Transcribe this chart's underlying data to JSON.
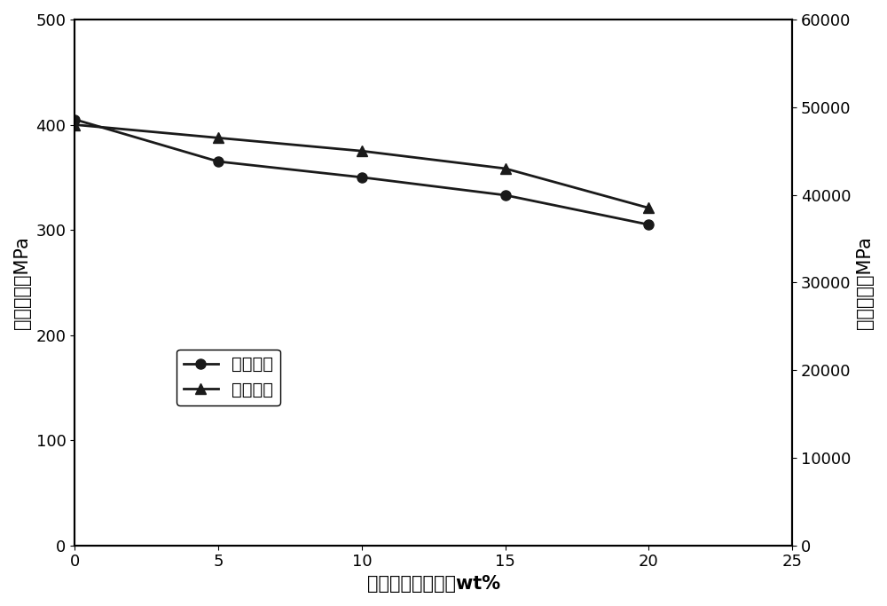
{
  "x": [
    0,
    5,
    10,
    15,
    20
  ],
  "hardness": [
    405,
    365,
    350,
    333,
    305
  ],
  "youngs_modulus": [
    48000,
    46500,
    45000,
    43000,
    38500
  ],
  "xlabel": "胶凝酸酸液浓度，wt%",
  "ylabel_left": "表面硬度，MPa",
  "ylabel_right": "杨氏模量，MPa",
  "legend_hardness": "表面硬度",
  "legend_youngs": "杨氏模量",
  "xlim": [
    0,
    25
  ],
  "ylim_left": [
    0,
    500
  ],
  "ylim_right": [
    0,
    60000
  ],
  "xticks": [
    0,
    5,
    10,
    15,
    20,
    25
  ],
  "yticks_left": [
    0,
    100,
    200,
    300,
    400,
    500
  ],
  "yticks_right": [
    0,
    10000,
    20000,
    30000,
    40000,
    50000,
    60000
  ],
  "line_color": "#1a1a1a",
  "marker_circle": "o",
  "marker_triangle": "^",
  "markersize": 8,
  "linewidth": 2.0,
  "figsize": [
    10.0,
    6.83
  ],
  "dpi": 100,
  "background_color": "#ffffff",
  "font_size_label": 15,
  "font_size_tick": 13,
  "font_size_legend": 14
}
